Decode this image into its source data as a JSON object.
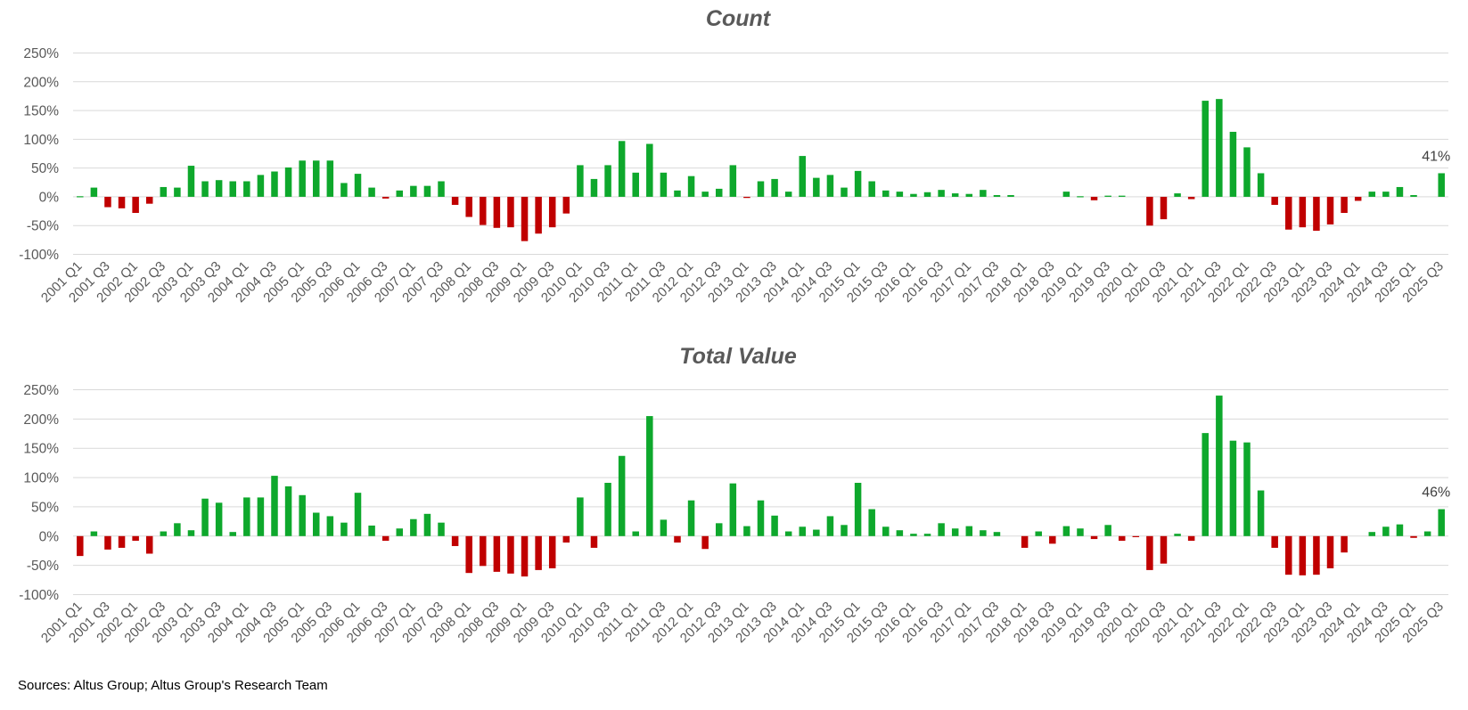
{
  "source_note": "Sources: Altus Group; Altus Group's Research Team",
  "colors": {
    "positive": "#0ea82c",
    "negative": "#c00000",
    "grid": "#d9d9d9",
    "text": "#595959"
  },
  "categories": [
    "2001 Q1",
    "2001 Q2",
    "2001 Q3",
    "2001 Q4",
    "2002 Q1",
    "2002 Q2",
    "2002 Q3",
    "2002 Q4",
    "2003 Q1",
    "2003 Q2",
    "2003 Q3",
    "2003 Q4",
    "2004 Q1",
    "2004 Q2",
    "2004 Q3",
    "2004 Q4",
    "2005 Q1",
    "2005 Q2",
    "2005 Q3",
    "2005 Q4",
    "2006 Q1",
    "2006 Q2",
    "2006 Q3",
    "2006 Q4",
    "2007 Q1",
    "2007 Q2",
    "2007 Q3",
    "2007 Q4",
    "2008 Q1",
    "2008 Q2",
    "2008 Q3",
    "2008 Q4",
    "2009 Q1",
    "2009 Q2",
    "2009 Q3",
    "2009 Q4",
    "2010 Q1",
    "2010 Q2",
    "2010 Q3",
    "2010 Q4",
    "2011 Q1",
    "2011 Q2",
    "2011 Q3",
    "2011 Q4",
    "2012 Q1",
    "2012 Q2",
    "2012 Q3",
    "2012 Q4",
    "2013 Q1",
    "2013 Q2",
    "2013 Q3",
    "2013 Q4",
    "2014 Q1",
    "2014 Q2",
    "2014 Q3",
    "2014 Q4",
    "2015 Q1",
    "2015 Q2",
    "2015 Q3",
    "2015 Q4",
    "2016 Q1",
    "2016 Q2",
    "2016 Q3",
    "2016 Q4",
    "2017 Q1",
    "2017 Q2",
    "2017 Q3",
    "2017 Q4",
    "2018 Q1",
    "2018 Q2",
    "2018 Q3",
    "2018 Q4",
    "2019 Q1",
    "2019 Q2",
    "2019 Q3",
    "2019 Q4",
    "2020 Q1",
    "2020 Q2",
    "2020 Q3",
    "2020 Q4",
    "2021 Q1",
    "2021 Q2",
    "2021 Q3",
    "2021 Q4",
    "2022 Q1",
    "2022 Q2",
    "2022 Q3",
    "2022 Q4",
    "2023 Q1",
    "2023 Q2",
    "2023 Q3",
    "2023 Q4",
    "2024 Q1",
    "2024 Q2",
    "2024 Q3",
    "2024 Q4",
    "2025 Q1",
    "2025 Q2",
    "2025 Q3"
  ],
  "chart_data": [
    {
      "type": "bar",
      "title": "Count",
      "xlabel": "",
      "ylabel": "",
      "ylim": [
        -100,
        250
      ],
      "yticks": [
        "-100%",
        "-50%",
        "0%",
        "50%",
        "100%",
        "150%",
        "200%",
        "250%"
      ],
      "ytick_values": [
        -100,
        -50,
        0,
        50,
        100,
        150,
        200,
        250
      ],
      "xtick_step": 2,
      "grid": true,
      "unit": "%",
      "last_label": "41%",
      "values": [
        1,
        16,
        -18,
        -20,
        -28,
        -12,
        17,
        16,
        54,
        27,
        29,
        27,
        27,
        38,
        44,
        51,
        63,
        63,
        63,
        24,
        40,
        16,
        -3,
        11,
        19,
        19,
        27,
        -14,
        -35,
        -49,
        -54,
        -53,
        -77,
        -64,
        -53,
        -29,
        55,
        31,
        55,
        97,
        42,
        92,
        42,
        11,
        36,
        9,
        14,
        55,
        -2,
        27,
        31,
        9,
        71,
        33,
        38,
        16,
        45,
        27,
        11,
        9,
        5,
        8,
        12,
        6,
        5,
        12,
        3,
        3,
        0,
        0,
        0,
        9,
        1,
        -6,
        2,
        2,
        0,
        -50,
        -39,
        6,
        -4,
        167,
        170,
        113,
        86,
        41,
        -14,
        -57,
        -53,
        -59,
        -48,
        -28,
        -7,
        9,
        9,
        17,
        3,
        0,
        41
      ]
    },
    {
      "type": "bar",
      "title": "Total Value",
      "xlabel": "",
      "ylabel": "",
      "ylim": [
        -100,
        250
      ],
      "yticks": [
        "-100%",
        "-50%",
        "0%",
        "50%",
        "100%",
        "150%",
        "200%",
        "250%"
      ],
      "ytick_values": [
        -100,
        -50,
        0,
        50,
        100,
        150,
        200,
        250
      ],
      "xtick_step": 2,
      "grid": true,
      "unit": "%",
      "last_label": "46%",
      "values": [
        -34,
        8,
        -23,
        -20,
        -8,
        -30,
        8,
        22,
        10,
        64,
        57,
        7,
        66,
        66,
        103,
        85,
        70,
        40,
        34,
        23,
        74,
        18,
        -8,
        13,
        29,
        38,
        23,
        -17,
        -63,
        -51,
        -61,
        -64,
        -69,
        -58,
        -55,
        -11,
        66,
        -20,
        91,
        137,
        8,
        205,
        28,
        -11,
        61,
        -22,
        22,
        90,
        17,
        61,
        35,
        8,
        16,
        11,
        34,
        19,
        91,
        46,
        16,
        10,
        4,
        4,
        22,
        13,
        17,
        10,
        7,
        0,
        -20,
        8,
        -13,
        17,
        13,
        -5,
        19,
        -8,
        -1,
        -58,
        -47,
        4,
        -8,
        176,
        240,
        163,
        160,
        78,
        -20,
        -66,
        -67,
        -66,
        -55,
        -28,
        0,
        7,
        16,
        20,
        -3,
        8,
        46
      ]
    }
  ]
}
